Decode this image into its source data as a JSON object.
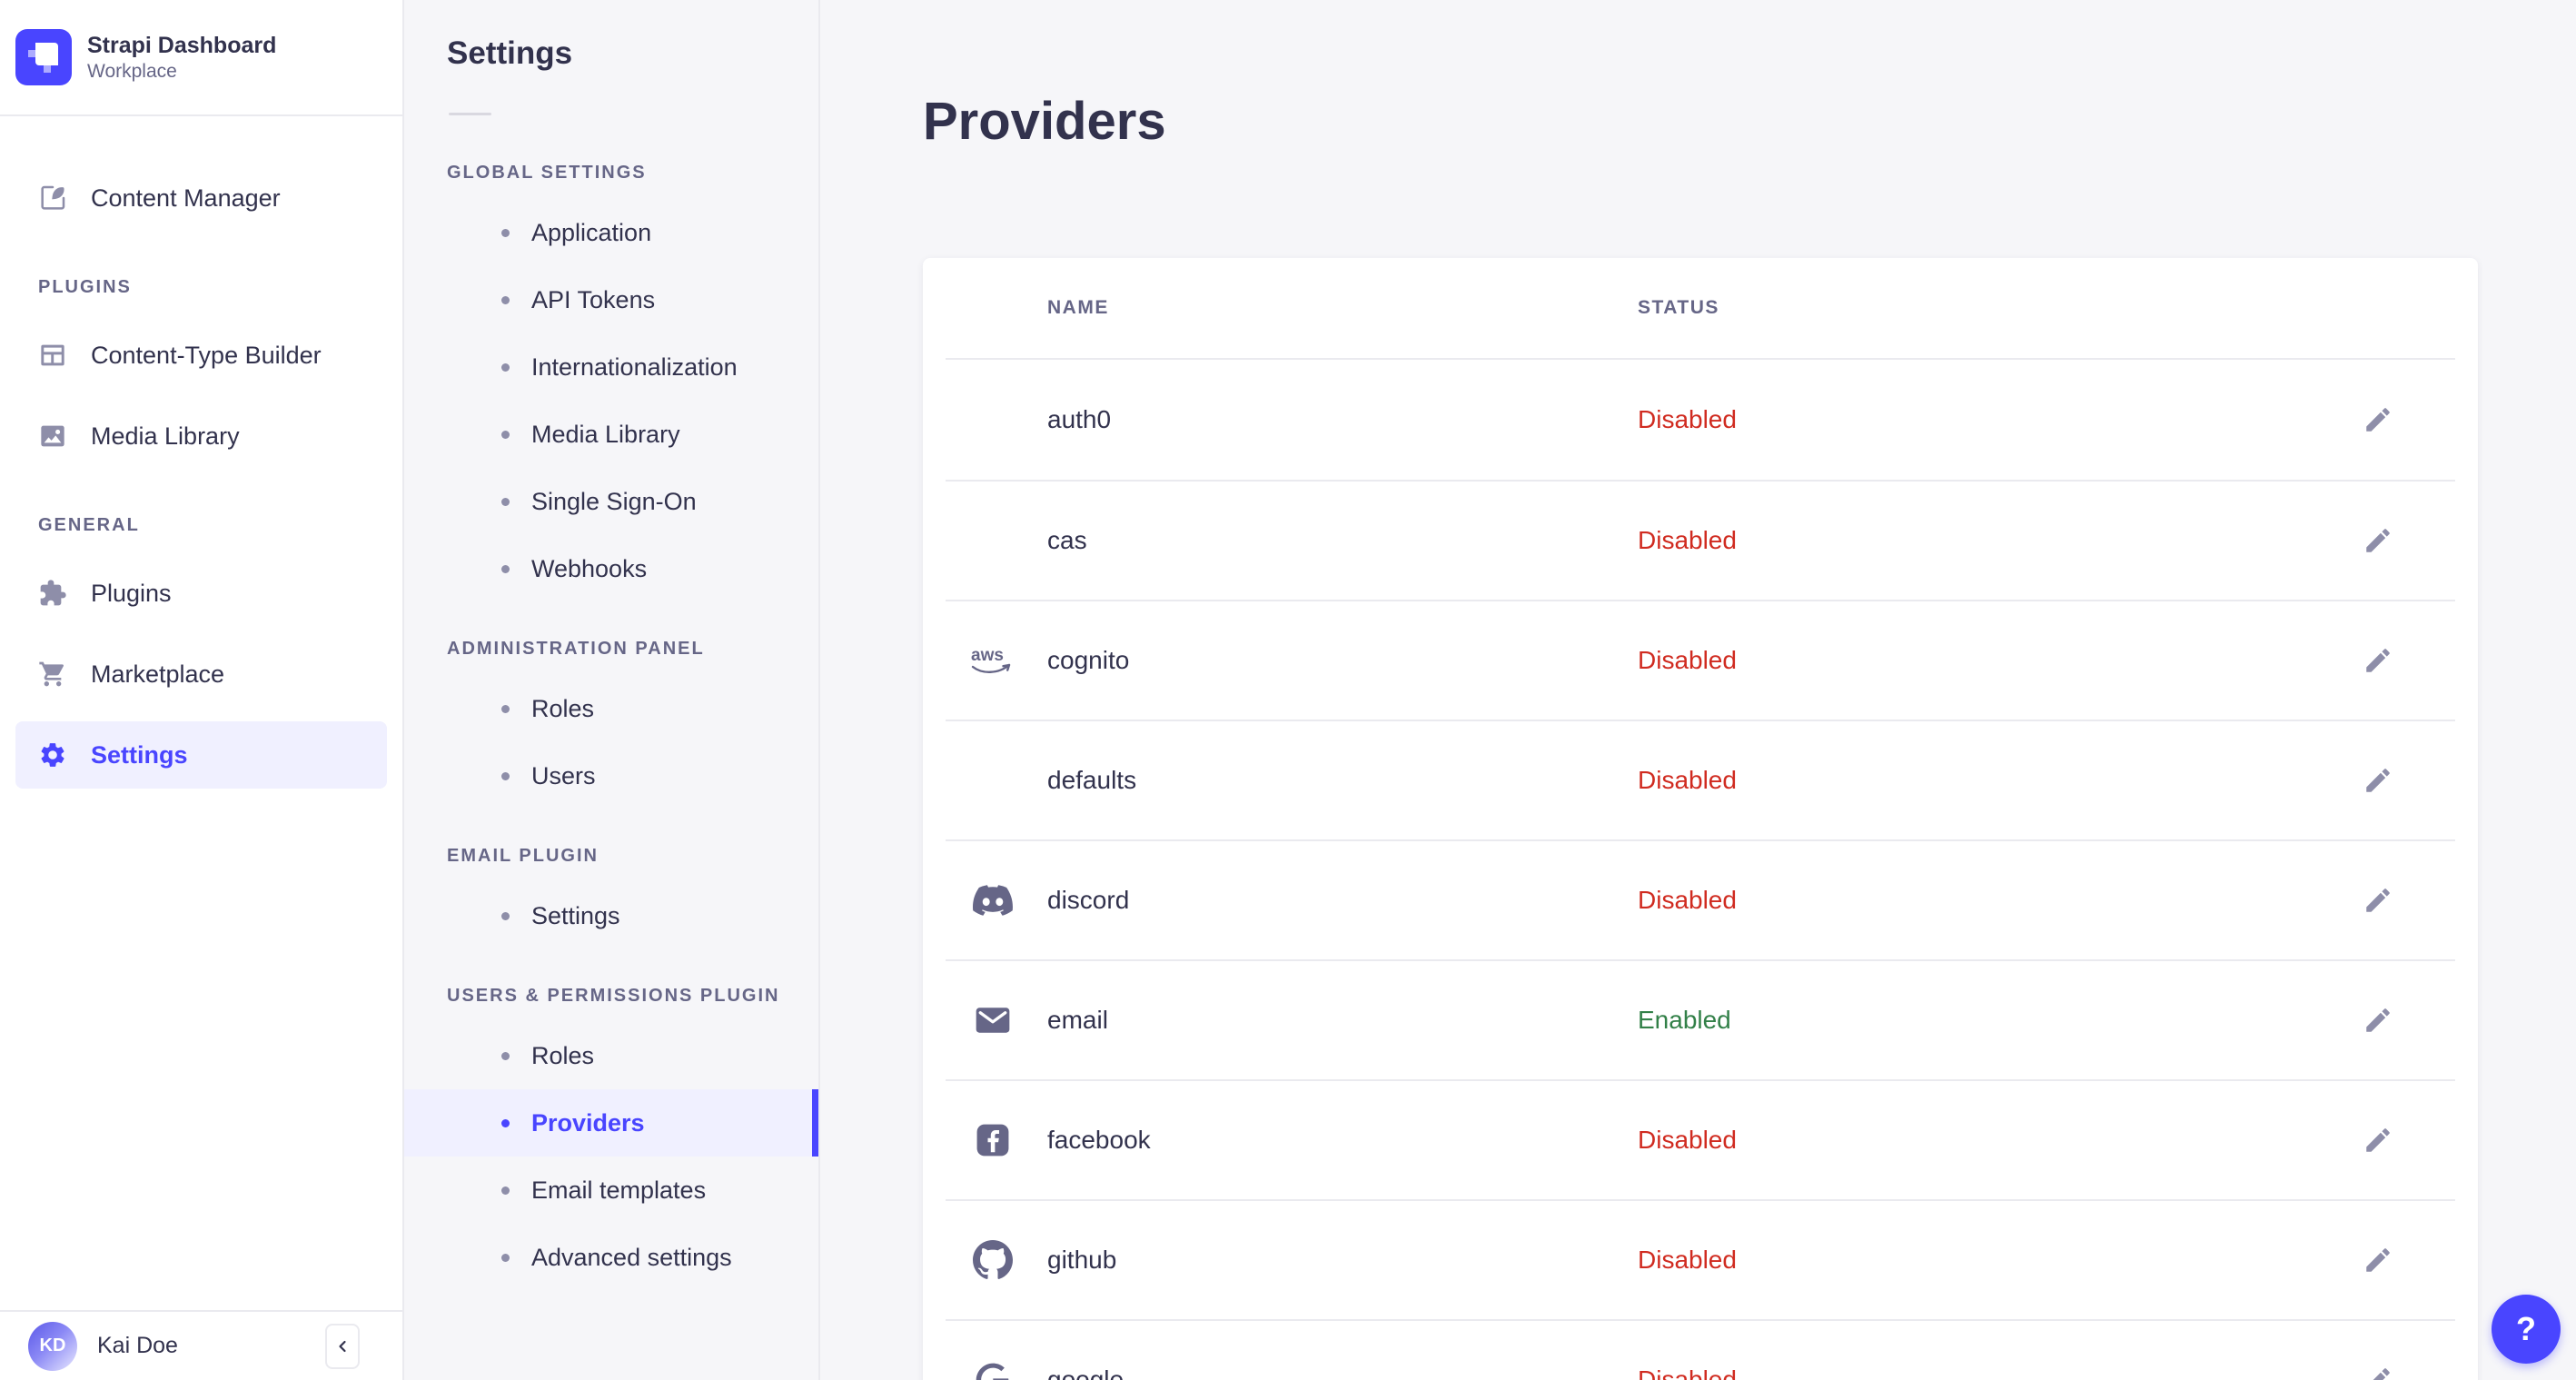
{
  "app": {
    "brand": {
      "title": "Strapi Dashboard",
      "subtitle": "Workplace"
    },
    "user": {
      "name": "Kai Doe",
      "initials": "KD"
    },
    "help_label": "?"
  },
  "colors": {
    "primary": "#4945ff",
    "active_bg": "#f0f0ff",
    "danger": "#d02b20",
    "success": "#328048",
    "text": "#32324d",
    "muted": "#666687",
    "border": "#eaeaef",
    "background": "#f6f6f9"
  },
  "sidebar": {
    "sections": [
      {
        "label": "",
        "items": [
          {
            "label": "Content Manager",
            "icon": "feather",
            "active": false
          }
        ]
      },
      {
        "label": "PLUGINS",
        "items": [
          {
            "label": "Content-Type Builder",
            "icon": "layout",
            "active": false
          },
          {
            "label": "Media Library",
            "icon": "picture",
            "active": false
          }
        ]
      },
      {
        "label": "GENERAL",
        "items": [
          {
            "label": "Plugins",
            "icon": "puzzle",
            "active": false
          },
          {
            "label": "Marketplace",
            "icon": "cart",
            "active": false
          },
          {
            "label": "Settings",
            "icon": "gear",
            "active": true
          }
        ]
      }
    ]
  },
  "subnav": {
    "title": "Settings",
    "groups": [
      {
        "label": "GLOBAL SETTINGS",
        "items": [
          {
            "label": "Application",
            "active": false
          },
          {
            "label": "API Tokens",
            "active": false
          },
          {
            "label": "Internationalization",
            "active": false
          },
          {
            "label": "Media Library",
            "active": false
          },
          {
            "label": "Single Sign-On",
            "active": false
          },
          {
            "label": "Webhooks",
            "active": false
          }
        ]
      },
      {
        "label": "ADMINISTRATION PANEL",
        "items": [
          {
            "label": "Roles",
            "active": false
          },
          {
            "label": "Users",
            "active": false
          }
        ]
      },
      {
        "label": "EMAIL PLUGIN",
        "items": [
          {
            "label": "Settings",
            "active": false
          }
        ]
      },
      {
        "label": "USERS & PERMISSIONS PLUGIN",
        "items": [
          {
            "label": "Roles",
            "active": false
          },
          {
            "label": "Providers",
            "active": true
          },
          {
            "label": "Email templates",
            "active": false
          },
          {
            "label": "Advanced settings",
            "active": false
          }
        ]
      }
    ]
  },
  "main": {
    "title": "Providers",
    "table": {
      "columns": [
        "NAME",
        "STATUS"
      ],
      "rows": [
        {
          "name": "auth0",
          "icon": "",
          "status": "Disabled"
        },
        {
          "name": "cas",
          "icon": "",
          "status": "Disabled"
        },
        {
          "name": "cognito",
          "icon": "aws",
          "status": "Disabled"
        },
        {
          "name": "defaults",
          "icon": "",
          "status": "Disabled"
        },
        {
          "name": "discord",
          "icon": "discord",
          "status": "Disabled"
        },
        {
          "name": "email",
          "icon": "envelope",
          "status": "Enabled"
        },
        {
          "name": "facebook",
          "icon": "facebook",
          "status": "Disabled"
        },
        {
          "name": "github",
          "icon": "github",
          "status": "Disabled"
        },
        {
          "name": "google",
          "icon": "google",
          "status": "Disabled"
        }
      ]
    }
  }
}
